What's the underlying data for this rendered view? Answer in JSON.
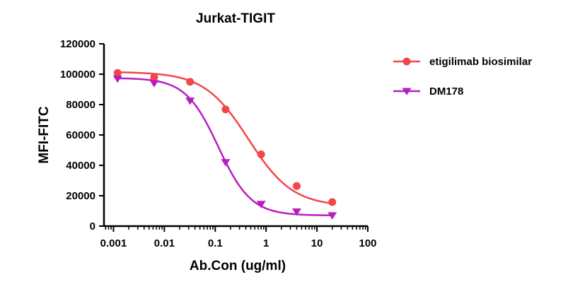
{
  "chart_data": {
    "type": "scatter",
    "title": "Jurkat-TIGIT",
    "xlabel": "Ab.Con (ug/ml)",
    "ylabel": "MFI-FITC",
    "x_scale": "log",
    "xlim": [
      0.00065,
      100
    ],
    "ylim": [
      0,
      120000
    ],
    "x_ticks": [
      0.001,
      0.01,
      0.1,
      1,
      10,
      100
    ],
    "x_tick_labels": [
      "0.001",
      "0.01",
      "0.1",
      "1",
      "10",
      "100"
    ],
    "y_ticks": [
      0,
      20000,
      40000,
      60000,
      80000,
      100000,
      120000
    ],
    "y_tick_labels": [
      "0",
      "20000",
      "40000",
      "60000",
      "80000",
      "100000",
      "120000"
    ],
    "grid": false,
    "legend_position": "right",
    "series": [
      {
        "name": "etigilimab biosimilar",
        "color": "#f2464c",
        "marker": "circle",
        "x": [
          0.0012,
          0.0063,
          0.032,
          0.16,
          0.8,
          4,
          20
        ],
        "y": [
          100800,
          98000,
          95000,
          76800,
          47200,
          26400,
          15800
        ],
        "fit_curve": {
          "bottom": 13000,
          "top": 101500,
          "ec50": 0.45,
          "hill": 1.0
        }
      },
      {
        "name": "DM178",
        "color": "#b61fbf",
        "marker": "triangle-down",
        "x": [
          0.0012,
          0.0063,
          0.032,
          0.16,
          0.8,
          4,
          20
        ],
        "y": [
          97000,
          94000,
          82500,
          42000,
          14500,
          9500,
          7000
        ],
        "fit_curve": {
          "bottom": 7000,
          "top": 97500,
          "ec50": 0.115,
          "hill": 1.35
        }
      }
    ]
  }
}
